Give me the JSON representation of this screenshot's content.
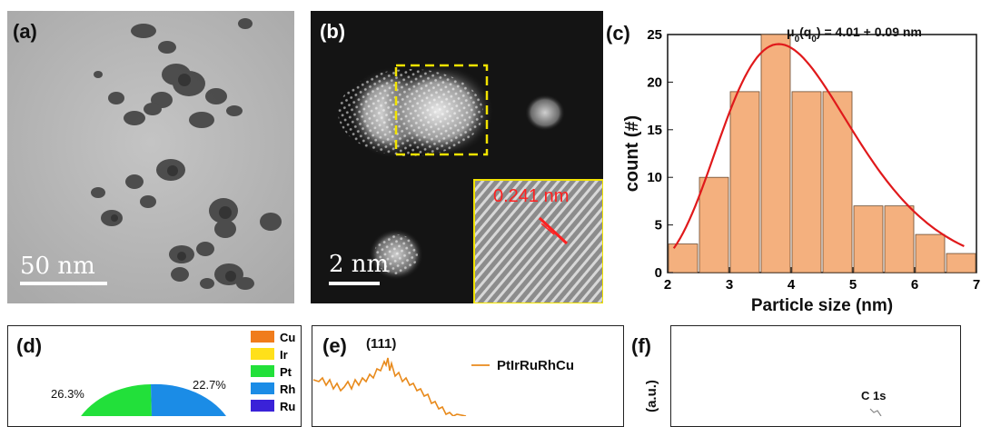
{
  "panels": {
    "a": {
      "label": "(a)",
      "scale": "50 nm"
    },
    "b": {
      "label": "(b)",
      "scale": "2 nm",
      "inset_spacing": "0.241 nm"
    },
    "c": {
      "label": "(c)",
      "annotation": "μ0(q0) = 4.01 + 0.09 nm"
    },
    "d": {
      "label": "(d)"
    },
    "e": {
      "label": "(e)",
      "peak_label": "(111)",
      "legend": "PtIrRuRhCu"
    },
    "f": {
      "label": "(f)",
      "ylabel_partial": "(a.u.)",
      "peak_label": "C 1s"
    }
  },
  "chart_data": [
    {
      "type": "bar",
      "panel": "c",
      "xlabel": "Particle size (nm)",
      "ylabel": "count (#)",
      "xlim": [
        2,
        7
      ],
      "ylim": [
        0,
        25
      ],
      "xticks": [
        "2",
        "3",
        "4",
        "5",
        "6",
        "7"
      ],
      "yticks": [
        "0",
        "5",
        "10",
        "15",
        "20",
        "25"
      ],
      "bins": [
        {
          "x": 2.25,
          "value": 3
        },
        {
          "x": 2.75,
          "value": 10
        },
        {
          "x": 3.25,
          "value": 19
        },
        {
          "x": 3.75,
          "value": 25
        },
        {
          "x": 4.25,
          "value": 19
        },
        {
          "x": 4.75,
          "value": 19
        },
        {
          "x": 5.25,
          "value": 7
        },
        {
          "x": 5.75,
          "value": 7
        },
        {
          "x": 6.25,
          "value": 4
        },
        {
          "x": 6.75,
          "value": 2
        }
      ],
      "fit": {
        "type": "lognormal",
        "mode": 3.8,
        "peak": 24
      },
      "bar_color": "#f4b07e",
      "fit_color": "#e0191b"
    },
    {
      "type": "pie",
      "panel": "d",
      "legend": [
        "Cu",
        "Ir",
        "Pt",
        "Rh",
        "Ru"
      ],
      "colors": [
        "#f07c1c",
        "#ffe01a",
        "#22e03a",
        "#1b8ce6",
        "#3a22d8"
      ],
      "slice_labels": [
        {
          "element": "Pt",
          "value": "26.3%"
        },
        {
          "element": "Rh",
          "value": "22.7%"
        }
      ]
    }
  ]
}
